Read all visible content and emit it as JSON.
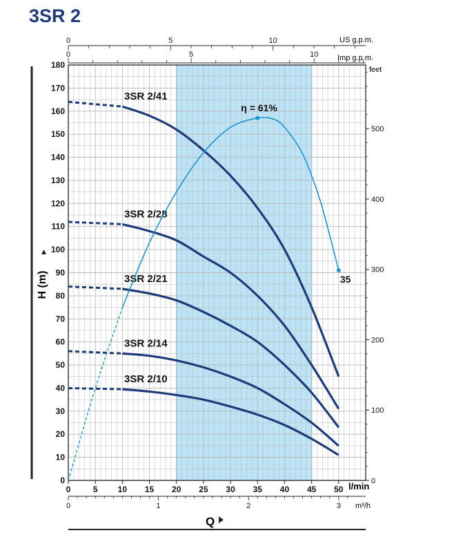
{
  "colors": {
    "title": "#1c3b78",
    "curve": "#1c3b78",
    "efficiency": "#1f93cc",
    "band": "#bde3f6",
    "grid": "#b8b8b8",
    "axis": "#222222"
  },
  "chart_data": {
    "type": "line",
    "title": "3SR 2",
    "ylabel": "H (m)",
    "xlabel": "Q",
    "x_unit": "l/min",
    "y_unit_right": "feet",
    "xlim": [
      0,
      55
    ],
    "ylim": [
      0,
      180
    ],
    "grid": true,
    "x_ticks": [
      0,
      5,
      10,
      15,
      20,
      25,
      30,
      35,
      40,
      45,
      50
    ],
    "y_ticks": [
      0,
      10,
      20,
      30,
      40,
      50,
      60,
      70,
      80,
      90,
      100,
      110,
      120,
      130,
      140,
      150,
      160,
      170,
      180
    ],
    "feet_ticks": [
      0,
      100,
      200,
      300,
      400,
      500
    ],
    "m3h_ticks": [
      0,
      1,
      2,
      3
    ],
    "us_gpm_label": "US g.p.m.",
    "us_gpm_ticks": [
      0,
      5,
      10
    ],
    "imp_gpm_label": "Imp g.p.m.",
    "imp_gpm_ticks": [
      0,
      5,
      10
    ],
    "m3h_label": "m³/h",
    "feet_label": "feet",
    "recommended_range": [
      20,
      45
    ],
    "series": [
      {
        "name": "3SR 2/41",
        "x": [
          0,
          10,
          15,
          20,
          25,
          30,
          35,
          40,
          45,
          50
        ],
        "y": [
          164,
          162,
          158,
          152,
          143,
          132,
          118,
          100,
          75,
          45
        ],
        "dashed_until": 10
      },
      {
        "name": "3SR 2/28",
        "x": [
          0,
          10,
          15,
          20,
          25,
          30,
          35,
          40,
          45,
          50
        ],
        "y": [
          112,
          111,
          108,
          104,
          97,
          90,
          80,
          67,
          50,
          31
        ],
        "dashed_until": 10
      },
      {
        "name": "3SR 2/21",
        "x": [
          0,
          10,
          15,
          20,
          25,
          30,
          35,
          40,
          45,
          50
        ],
        "y": [
          84,
          83,
          81,
          78,
          73,
          67,
          60,
          50,
          38,
          23
        ],
        "dashed_until": 10
      },
      {
        "name": "3SR 2/14",
        "x": [
          0,
          10,
          15,
          20,
          25,
          30,
          35,
          40,
          45,
          50
        ],
        "y": [
          56,
          55,
          54,
          52,
          49,
          45,
          40,
          33,
          25,
          15
        ],
        "dashed_until": 10
      },
      {
        "name": "3SR 2/10",
        "x": [
          0,
          10,
          15,
          20,
          25,
          30,
          35,
          40,
          45,
          50
        ],
        "y": [
          40,
          39.5,
          38.5,
          37,
          35,
          32,
          28.5,
          24,
          18,
          11
        ],
        "dashed_until": 10
      }
    ],
    "efficiency": {
      "label": "η = 61%",
      "end_label": "35",
      "x": [
        0,
        5,
        10,
        15,
        20,
        25,
        30,
        35,
        38,
        40,
        43,
        45,
        47,
        50
      ],
      "y": [
        0,
        40,
        75,
        103,
        125,
        142,
        153,
        157,
        156.5,
        153,
        143,
        132,
        118,
        91
      ],
      "dashed_until": 10
    }
  }
}
